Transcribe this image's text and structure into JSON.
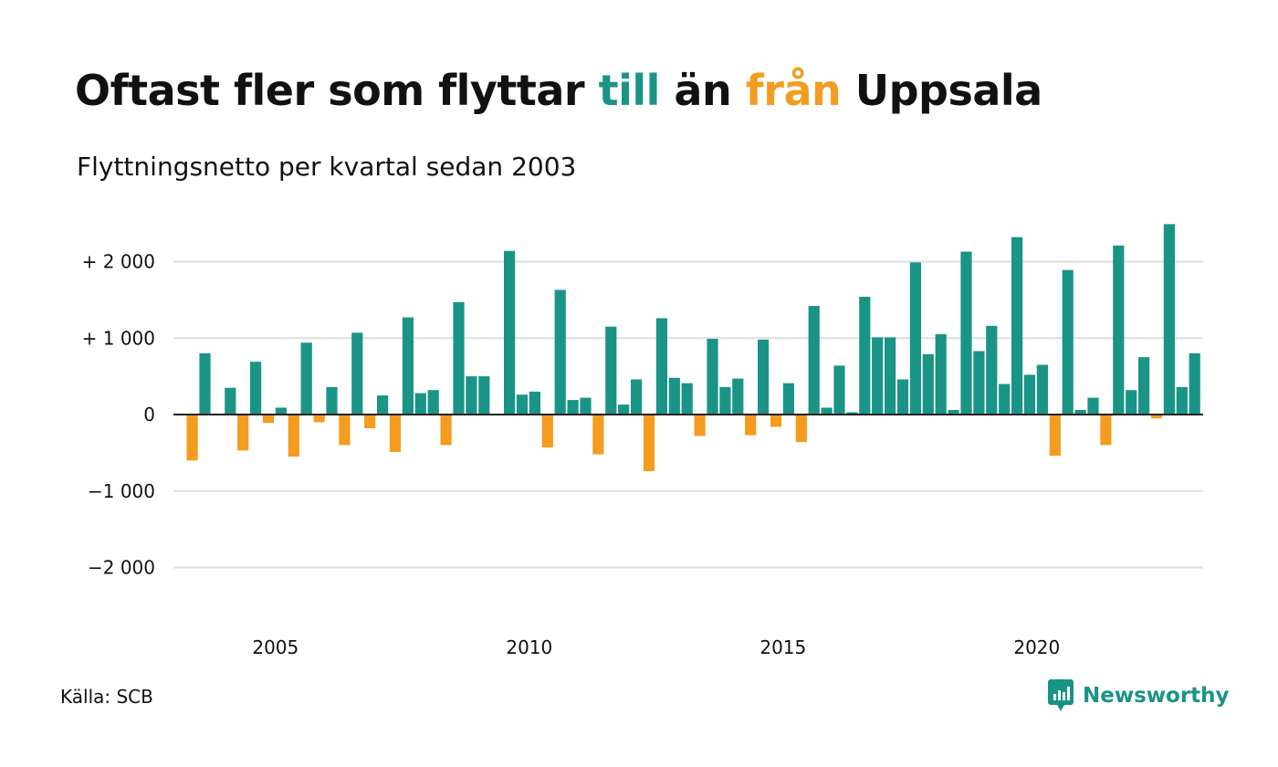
{
  "title": {
    "part1": "Oftast fler som flyttar ",
    "highlight_in": "till",
    "part2": " än ",
    "highlight_out": "från",
    "part3": " Uppsala"
  },
  "subtitle": "Flyttningsnetto per kvartal sedan 2003",
  "source": "Källa: SCB",
  "brand": {
    "name": "Newsworthy",
    "icon": "newsworthy-logo-icon"
  },
  "colors": {
    "positive": "#1a9486",
    "negative": "#f39c1f",
    "grid": "#dddddd",
    "zero_line": "#222222"
  },
  "chart_data": {
    "type": "bar",
    "title": "Oftast fler som flyttar till än från Uppsala",
    "subtitle": "Flyttningsnetto per kvartal sedan 2003",
    "xlabel": "",
    "ylabel": "",
    "ylim": [
      -2500,
      2500
    ],
    "grid": true,
    "y_ticks": [
      {
        "value": 2000,
        "label": "+ 2 000"
      },
      {
        "value": 1000,
        "label": "+ 1 000"
      },
      {
        "value": 0,
        "label": "0"
      },
      {
        "value": -1000,
        "label": "−1 000"
      },
      {
        "value": -2000,
        "label": "−2 000"
      }
    ],
    "x_ticks": [
      {
        "value": 2005,
        "label": "2005"
      },
      {
        "value": 2010,
        "label": "2010"
      },
      {
        "value": 2015,
        "label": "2015"
      },
      {
        "value": 2020,
        "label": "2020"
      }
    ],
    "first_quarter": "2003 Q2",
    "values": [
      -600,
      800,
      0,
      350,
      -470,
      690,
      -110,
      90,
      -550,
      940,
      -100,
      360,
      -400,
      1070,
      -180,
      250,
      -490,
      1270,
      280,
      320,
      -400,
      1470,
      500,
      500,
      0,
      2140,
      260,
      300,
      -430,
      1630,
      190,
      220,
      -520,
      1150,
      130,
      460,
      -740,
      1260,
      480,
      410,
      -280,
      990,
      360,
      470,
      -270,
      980,
      -160,
      410,
      -360,
      1420,
      90,
      640,
      30,
      1540,
      1010,
      1010,
      460,
      1990,
      790,
      1050,
      60,
      2130,
      830,
      1160,
      400,
      2320,
      520,
      650,
      -540,
      1890,
      60,
      220,
      -400,
      2210,
      320,
      750,
      -50,
      2490,
      360,
      800
    ]
  }
}
